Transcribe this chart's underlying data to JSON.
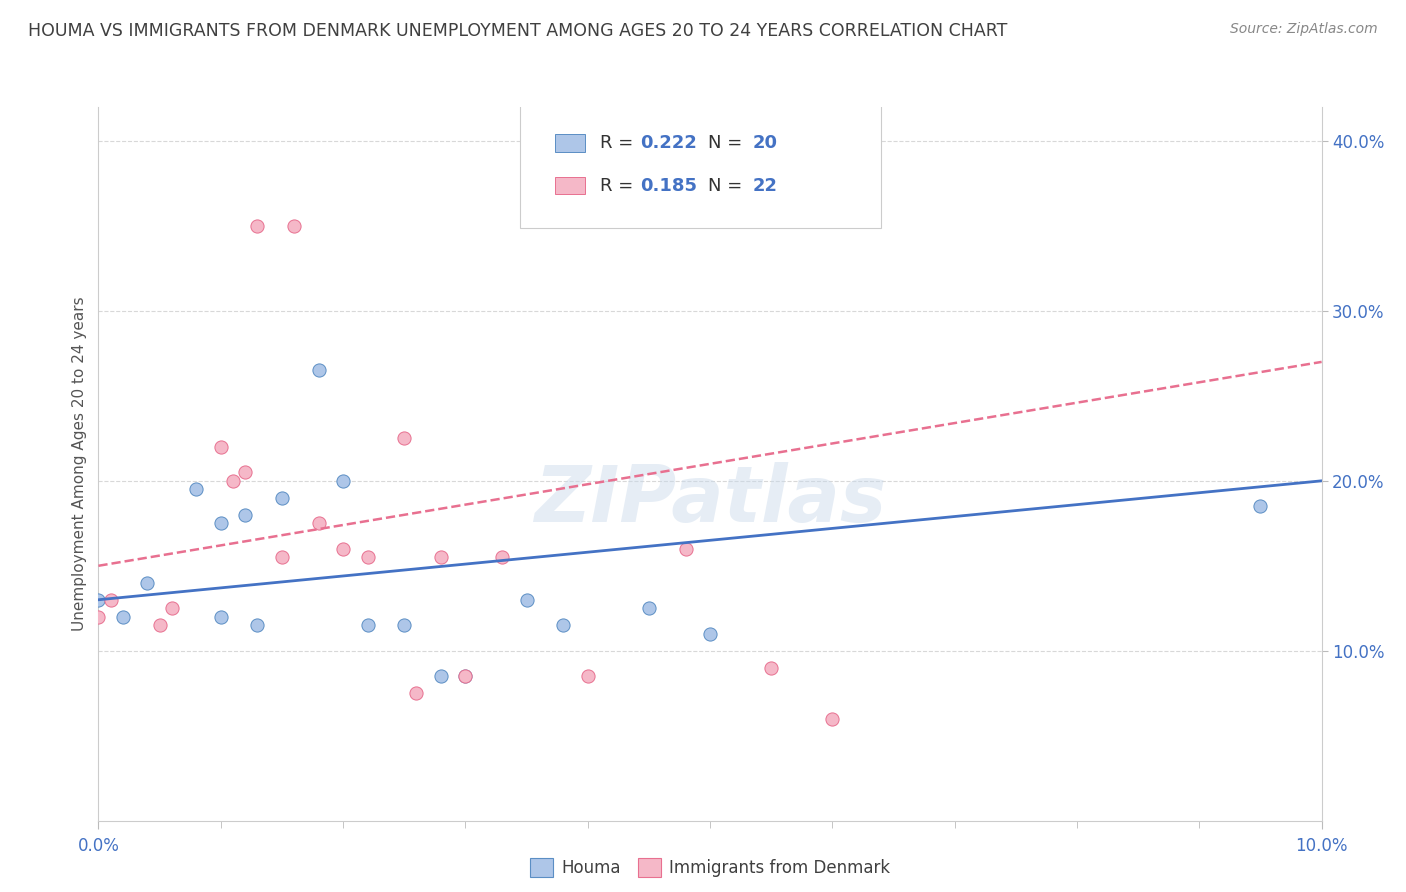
{
  "title": "HOUMA VS IMMIGRANTS FROM DENMARK UNEMPLOYMENT AMONG AGES 20 TO 24 YEARS CORRELATION CHART",
  "source": "Source: ZipAtlas.com",
  "ylabel": "Unemployment Among Ages 20 to 24 years",
  "xlim": [
    0.0,
    0.1
  ],
  "ylim": [
    0.0,
    0.42
  ],
  "ytick_vals": [
    0.1,
    0.2,
    0.3,
    0.4
  ],
  "ytick_labels": [
    "10.0%",
    "20.0%",
    "30.0%",
    "40.0%"
  ],
  "houma_color": "#aec6e8",
  "denmark_color": "#f5b8c8",
  "houma_edge_color": "#5b8ec4",
  "denmark_edge_color": "#e87090",
  "houma_line_color": "#4472c4",
  "denmark_line_color": "#e87090",
  "watermark": "ZIPatlas",
  "houma_scatter_x": [
    0.0,
    0.002,
    0.004,
    0.008,
    0.01,
    0.01,
    0.012,
    0.013,
    0.015,
    0.018,
    0.02,
    0.022,
    0.025,
    0.028,
    0.03,
    0.035,
    0.038,
    0.045,
    0.05,
    0.095
  ],
  "houma_scatter_y": [
    0.13,
    0.12,
    0.14,
    0.195,
    0.175,
    0.12,
    0.18,
    0.115,
    0.19,
    0.265,
    0.2,
    0.115,
    0.115,
    0.085,
    0.085,
    0.13,
    0.115,
    0.125,
    0.11,
    0.185
  ],
  "denmark_scatter_x": [
    0.0,
    0.001,
    0.005,
    0.006,
    0.01,
    0.011,
    0.012,
    0.013,
    0.015,
    0.016,
    0.018,
    0.02,
    0.022,
    0.025,
    0.026,
    0.028,
    0.03,
    0.033,
    0.04,
    0.048,
    0.055,
    0.06
  ],
  "denmark_scatter_y": [
    0.12,
    0.13,
    0.115,
    0.125,
    0.22,
    0.2,
    0.205,
    0.35,
    0.155,
    0.35,
    0.175,
    0.16,
    0.155,
    0.225,
    0.075,
    0.155,
    0.085,
    0.155,
    0.085,
    0.16,
    0.09,
    0.06
  ],
  "houma_trend_x": [
    0.0,
    0.1
  ],
  "houma_trend_y": [
    0.13,
    0.2
  ],
  "denmark_trend_x": [
    0.0,
    0.1
  ],
  "denmark_trend_y": [
    0.15,
    0.27
  ],
  "grid_color": "#d8d8d8",
  "background_color": "#ffffff",
  "title_color": "#404040",
  "tick_color": "#4472c4",
  "source_color": "#888888"
}
